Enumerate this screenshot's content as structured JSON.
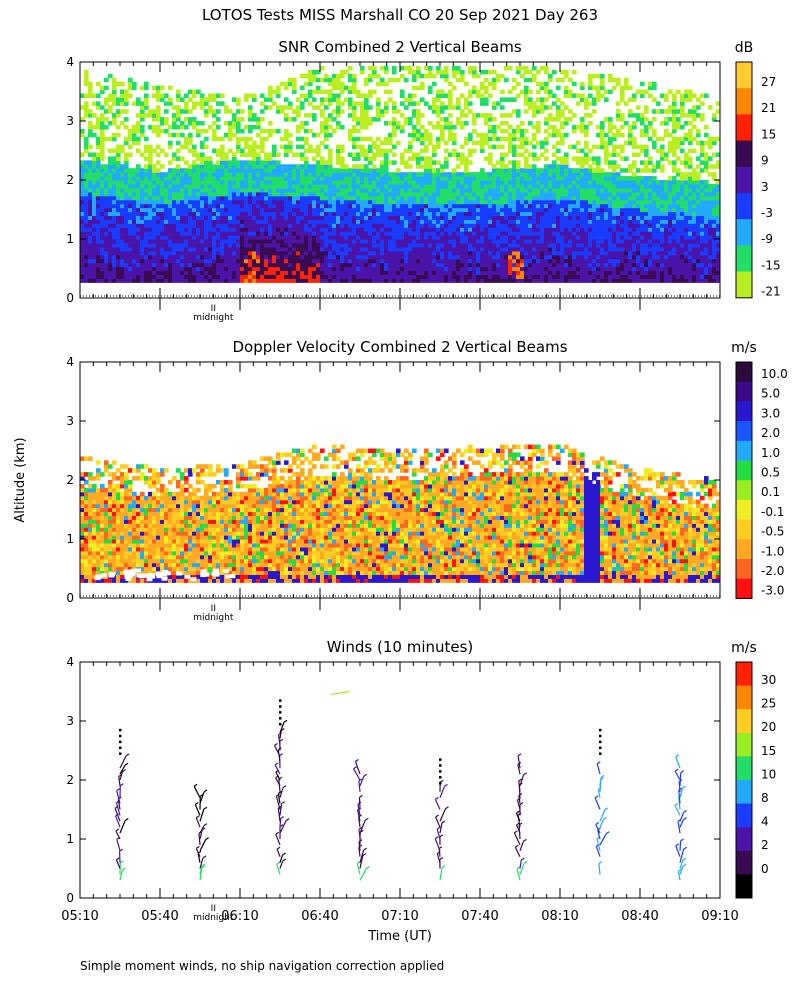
{
  "figure_title": "LOTOS Tests MISS Marshall CO  20 Sep 2021 Day 263",
  "footnote": "Simple moment winds, no ship navigation correction applied",
  "shared_ylabel": "Altitude (km)",
  "shared_xlabel": "Time (UT)",
  "midnight_label": "midnight",
  "midnight_marker": "II",
  "chart_data": [
    {
      "type": "heatmap",
      "title": "SNR Combined 2 Vertical Beams",
      "colorbar_unit": "dB",
      "colorbar_ticks": [
        "27",
        "21",
        "15",
        "9",
        "3",
        "-3",
        "-9",
        "-15",
        "-21"
      ],
      "colorbar_colors": [
        "#ffcc33",
        "#ff8800",
        "#ff2200",
        "#3a0a52",
        "#4a14a8",
        "#1a3cff",
        "#22aaff",
        "#22dd66",
        "#bbee22"
      ],
      "ylim": [
        0,
        4
      ],
      "yticks": [
        "0",
        "1",
        "2",
        "3",
        "4"
      ],
      "xlim_min": [
        0,
        240
      ],
      "overview": {
        "levels": [
          "-21",
          "-15",
          "-9",
          "-3",
          "3",
          "9",
          "15",
          "21"
        ],
        "time_min": [
          0,
          30,
          60,
          90,
          120,
          150,
          180,
          210,
          240
        ],
        "top_km": [
          3.9,
          3.6,
          3.4,
          3.9,
          3.9,
          3.9,
          3.9,
          3.7,
          3.4
        ],
        "boundary_km": [
          2.1,
          1.9,
          2.1,
          2.0,
          1.9,
          1.9,
          2.0,
          1.8,
          1.7
        ]
      }
    },
    {
      "type": "heatmap",
      "title": "Doppler Velocity Combined 2 Vertical Beams",
      "colorbar_unit": "m/s",
      "colorbar_ticks": [
        "10.0",
        "5.0",
        "3.0",
        "2.0",
        "1.0",
        "0.5",
        "0.1",
        "-0.1",
        "-0.5",
        "-1.0",
        "-2.0",
        "-3.0"
      ],
      "colorbar_colors": [
        "#2a0a3a",
        "#3a0a8a",
        "#2a18d0",
        "#1a55ff",
        "#22aaff",
        "#22dd44",
        "#99ee22",
        "#eeee22",
        "#ffcc22",
        "#ffaa22",
        "#ff6622",
        "#ff1111"
      ],
      "ylim": [
        0,
        4
      ],
      "yticks": [
        "0",
        "1",
        "2",
        "3",
        "4"
      ],
      "xlim_min": [
        0,
        240
      ],
      "overview": {
        "levels": [
          "-3.0",
          "-2.0",
          "-1.0",
          "-0.5",
          "-0.1",
          "0.1",
          "0.5",
          "1.0",
          "2.0"
        ],
        "time_min": [
          0,
          30,
          60,
          90,
          120,
          150,
          180,
          210,
          240
        ],
        "top_km": [
          2.4,
          2.2,
          2.3,
          2.6,
          2.5,
          2.6,
          2.6,
          2.2,
          2.0
        ]
      }
    },
    {
      "type": "scatter",
      "title": "Winds (10 minutes)",
      "colorbar_unit": "m/s",
      "colorbar_ticks": [
        "30",
        "25",
        "20",
        "15",
        "10",
        "8",
        "4",
        "2",
        "0"
      ],
      "colorbar_colors": [
        "#ff2200",
        "#ff8800",
        "#ffcc22",
        "#99ee22",
        "#22dd66",
        "#22aaff",
        "#1a3cff",
        "#4a14a8",
        "#3a0a52",
        "#000000"
      ],
      "ylim": [
        0,
        4
      ],
      "yticks": [
        "0",
        "1",
        "2",
        "3",
        "4"
      ],
      "xlim_min": [
        0,
        240
      ],
      "xticks": [
        {
          "t": 0,
          "label": "05:10"
        },
        {
          "t": 30,
          "label": "05:40"
        },
        {
          "t": 60,
          "label": "06:10"
        },
        {
          "t": 90,
          "label": "06:40"
        },
        {
          "t": 120,
          "label": "07:10"
        },
        {
          "t": 150,
          "label": "07:40"
        },
        {
          "t": 180,
          "label": "08:10"
        },
        {
          "t": 210,
          "label": "08:40"
        },
        {
          "t": 240,
          "label": "09:10"
        }
      ],
      "profiles_min": [
        15,
        45,
        75,
        105,
        135,
        165,
        195,
        225
      ],
      "profile_top_km": [
        2.4,
        1.9,
        2.9,
        2.2,
        1.9,
        2.3,
        2.4,
        2.3
      ],
      "profile_speeds_ms": [
        3,
        2,
        3,
        3,
        3,
        3,
        10,
        10
      ]
    }
  ]
}
